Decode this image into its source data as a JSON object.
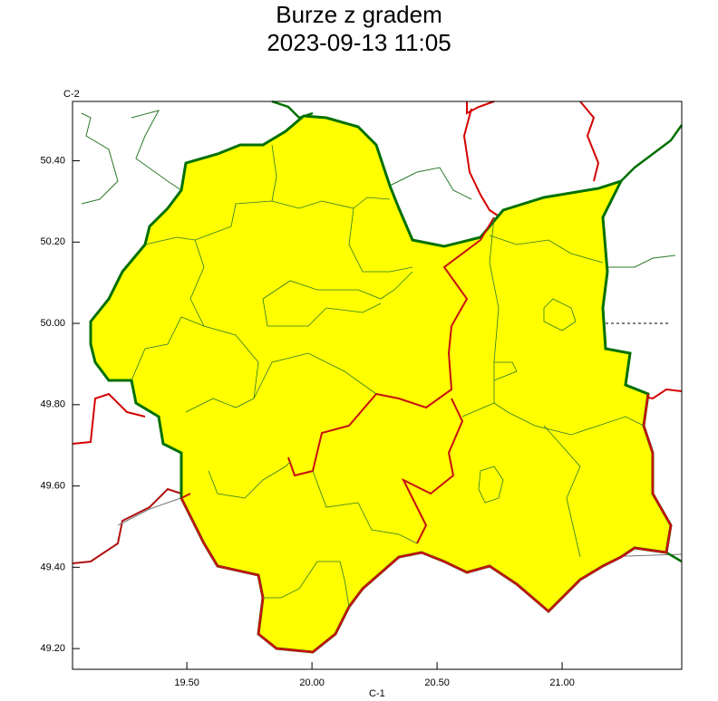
{
  "map": {
    "title": "Burze z gradem",
    "subtitle": "2023-09-13 11:05",
    "corner_top": "C-2",
    "corner_bottom": "C-1",
    "xlim": [
      19.043,
      21.478
    ],
    "ylim": [
      49.149,
      50.546
    ],
    "xticks": [
      {
        "value": 19.5,
        "label": "19.50"
      },
      {
        "value": 20.0,
        "label": "20.00"
      },
      {
        "value": 20.5,
        "label": "20.50"
      },
      {
        "value": 21.0,
        "label": "21.00"
      }
    ],
    "yticks": [
      {
        "value": 50.4,
        "label": "50.40"
      },
      {
        "value": 50.2,
        "label": "50.20"
      },
      {
        "value": 50.0,
        "label": "50.00"
      },
      {
        "value": 49.8,
        "label": "49.80"
      },
      {
        "value": 49.6,
        "label": "49.60"
      },
      {
        "value": 49.4,
        "label": "49.40"
      },
      {
        "value": 49.2,
        "label": "49.20"
      }
    ]
  }
}
